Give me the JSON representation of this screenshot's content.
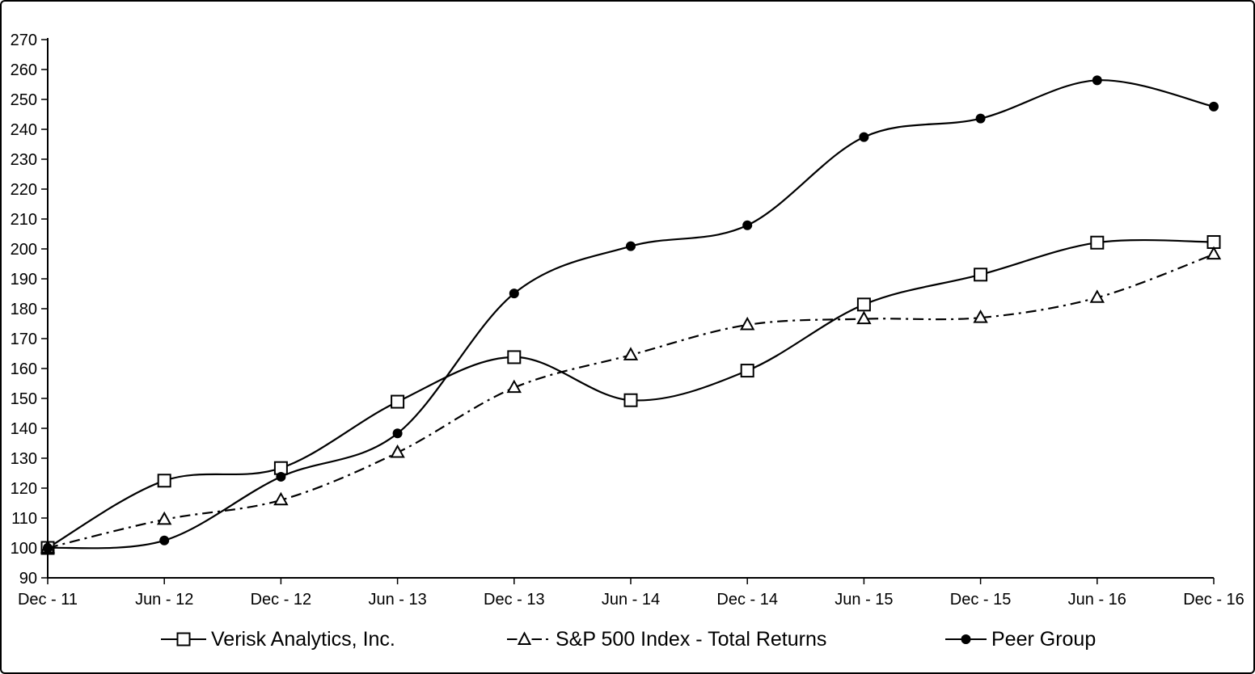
{
  "chart_data": {
    "type": "line",
    "title": "",
    "xlabel": "",
    "ylabel": "",
    "categories": [
      "Dec - 11",
      "Jun - 12",
      "Dec - 12",
      "Jun - 13",
      "Dec - 13",
      "Jun - 14",
      "Dec - 14",
      "Jun - 15",
      "Dec - 15",
      "Jun - 16",
      "Dec - 16"
    ],
    "series": [
      {
        "name": "Verisk Analytics, Inc.",
        "marker": "open-square",
        "line_style": "solid",
        "values": [
          100,
          122.5,
          126.7,
          148.9,
          163.8,
          149.4,
          159.3,
          181.4,
          191.4,
          202.1,
          202.3
        ]
      },
      {
        "name": "S&P 500 Index - Total Returns",
        "marker": "open-triangle",
        "line_style": "dash-dot",
        "values": [
          100,
          109.5,
          116.0,
          131.9,
          153.6,
          164.5,
          174.6,
          176.6,
          177.0,
          183.7,
          198.2
        ]
      },
      {
        "name": "Peer Group",
        "marker": "filled-circle",
        "line_style": "solid",
        "values": [
          100,
          102.5,
          123.8,
          138.3,
          185.1,
          200.9,
          207.9,
          237.4,
          243.6,
          256.4,
          247.6
        ]
      }
    ],
    "ylim": [
      90,
      270
    ],
    "ytick_step": 10,
    "grid": false,
    "legend_position": "bottom",
    "line_smoothing": true,
    "colors": {
      "line": "#000000",
      "background": "#ffffff"
    }
  }
}
